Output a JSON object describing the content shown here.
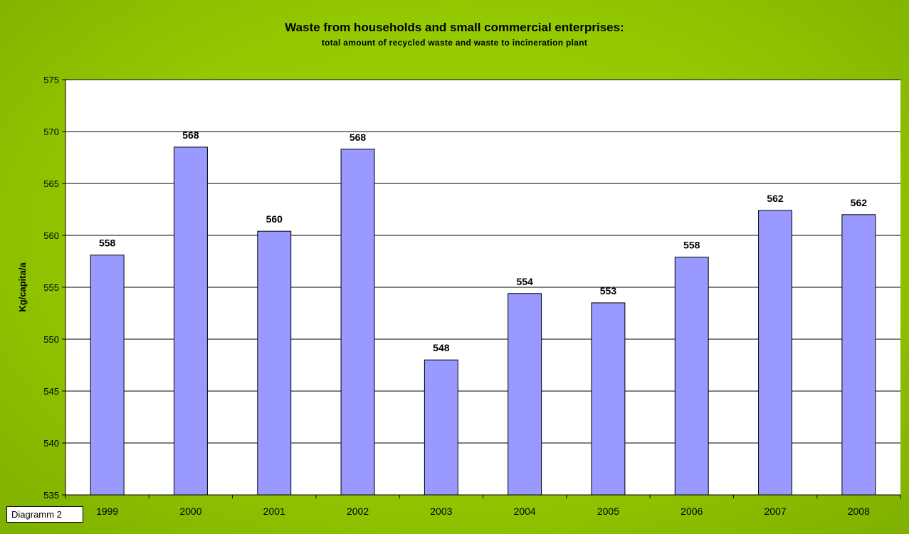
{
  "chart_data": {
    "type": "bar",
    "title": "Waste from households and small commercial enterprises:",
    "subtitle": "total amount of recycled waste and waste to incineration plant",
    "ylabel": "Kg/capita/a",
    "xlabel": "",
    "categories": [
      "1999",
      "2000",
      "2001",
      "2002",
      "2003",
      "2004",
      "2005",
      "2006",
      "2007",
      "2008"
    ],
    "values": [
      558.1,
      568.5,
      560.4,
      568.3,
      548.0,
      554.4,
      553.5,
      557.9,
      562.4,
      562.0
    ],
    "data_labels": [
      "558",
      "568",
      "560",
      "568",
      "548",
      "554",
      "553",
      "558",
      "562",
      "562"
    ],
    "ylim": [
      535,
      575
    ],
    "yticks": [
      535,
      540,
      545,
      550,
      555,
      560,
      565,
      570,
      575
    ],
    "grid": true,
    "legend": "none",
    "bar_color": "#9999ff",
    "background_color": "#99cc00",
    "plot_background": "#ffffff"
  },
  "caption": "Diagramm 2"
}
